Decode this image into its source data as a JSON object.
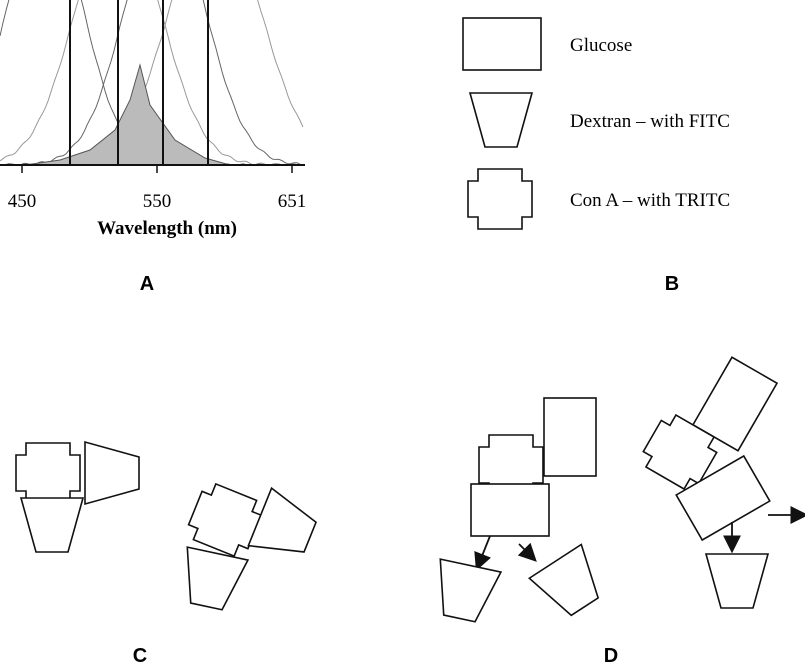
{
  "panel_a": {
    "x_tick_labels": [
      "450",
      "550",
      "651"
    ],
    "x_axis_label": "Wavelength (nm)",
    "label": "A"
  },
  "panel_b": {
    "legend": [
      "Glucose",
      "Dextran – with FITC",
      "Con A – with TRITC"
    ],
    "label": "B"
  },
  "panel_c": {
    "label": "C"
  },
  "panel_d": {
    "label": "D"
  }
}
